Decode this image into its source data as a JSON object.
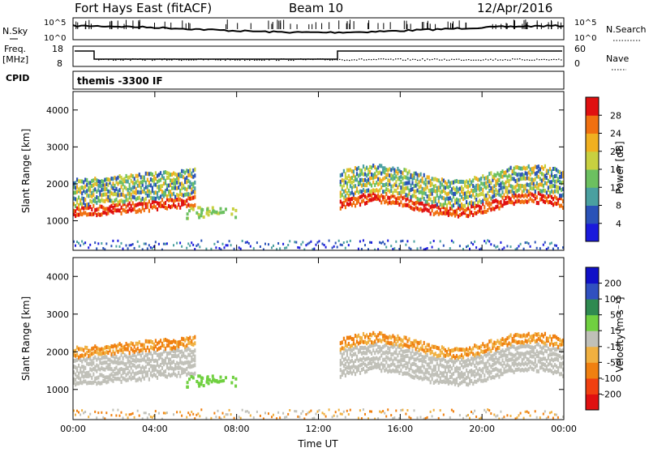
{
  "header": {
    "title": "Fort Hays East (fitACF)",
    "beam": "Beam 10",
    "date": "12/Apr/2016"
  },
  "noise_panel": {
    "left_label": "N.Sky",
    "right_label": "N.Search",
    "left_ticks": [
      "10^5",
      "10^0"
    ],
    "right_ticks": [
      "10^5",
      "10^0"
    ]
  },
  "freq_panel": {
    "left_label_1": "Freq.",
    "left_label_2": "[MHz]",
    "right_label": "Nave",
    "left_ticks": [
      "18",
      "8"
    ],
    "right_ticks": [
      "60",
      "0"
    ]
  },
  "cpid_panel": {
    "label": "CPID",
    "text": "themis -3300 IF"
  },
  "colors": {
    "power_scale": [
      "#1a1adc",
      "#2a52b8",
      "#4aa0a0",
      "#6cc060",
      "#c8d040",
      "#f0b020",
      "#f07010",
      "#e01010"
    ],
    "velocity_scale": [
      "#1010c8",
      "#3050c0",
      "#2f8a50",
      "#70d040",
      "#c0c0b8",
      "#f0b040",
      "#f08010",
      "#f04010",
      "#e01010"
    ]
  },
  "chart_data": [
    {
      "type": "heatmap",
      "title": "",
      "xlabel": "",
      "ylabel": "Slant Range [km]",
      "x_range": [
        "00:00",
        "00:00"
      ],
      "y_ticks": [
        1000,
        2000,
        3000,
        4000
      ],
      "ylim": [
        200,
        4500
      ],
      "colorbar": {
        "label": "Power [dB]",
        "ticks": [
          4,
          8,
          12,
          16,
          20,
          24,
          28
        ]
      }
    },
    {
      "type": "heatmap",
      "title": "",
      "xlabel": "Time UT",
      "ylabel": "Slant Range [km]",
      "x_ticks": [
        "00:00",
        "04:00",
        "08:00",
        "12:00",
        "16:00",
        "20:00",
        "00:00"
      ],
      "y_ticks": [
        1000,
        2000,
        3000,
        4000
      ],
      "ylim": [
        200,
        4500
      ],
      "colorbar": {
        "label": "Velocity [m s⁻¹]",
        "ticks": [
          200,
          100,
          50,
          15,
          -15,
          -50,
          -100,
          -200
        ]
      }
    }
  ]
}
